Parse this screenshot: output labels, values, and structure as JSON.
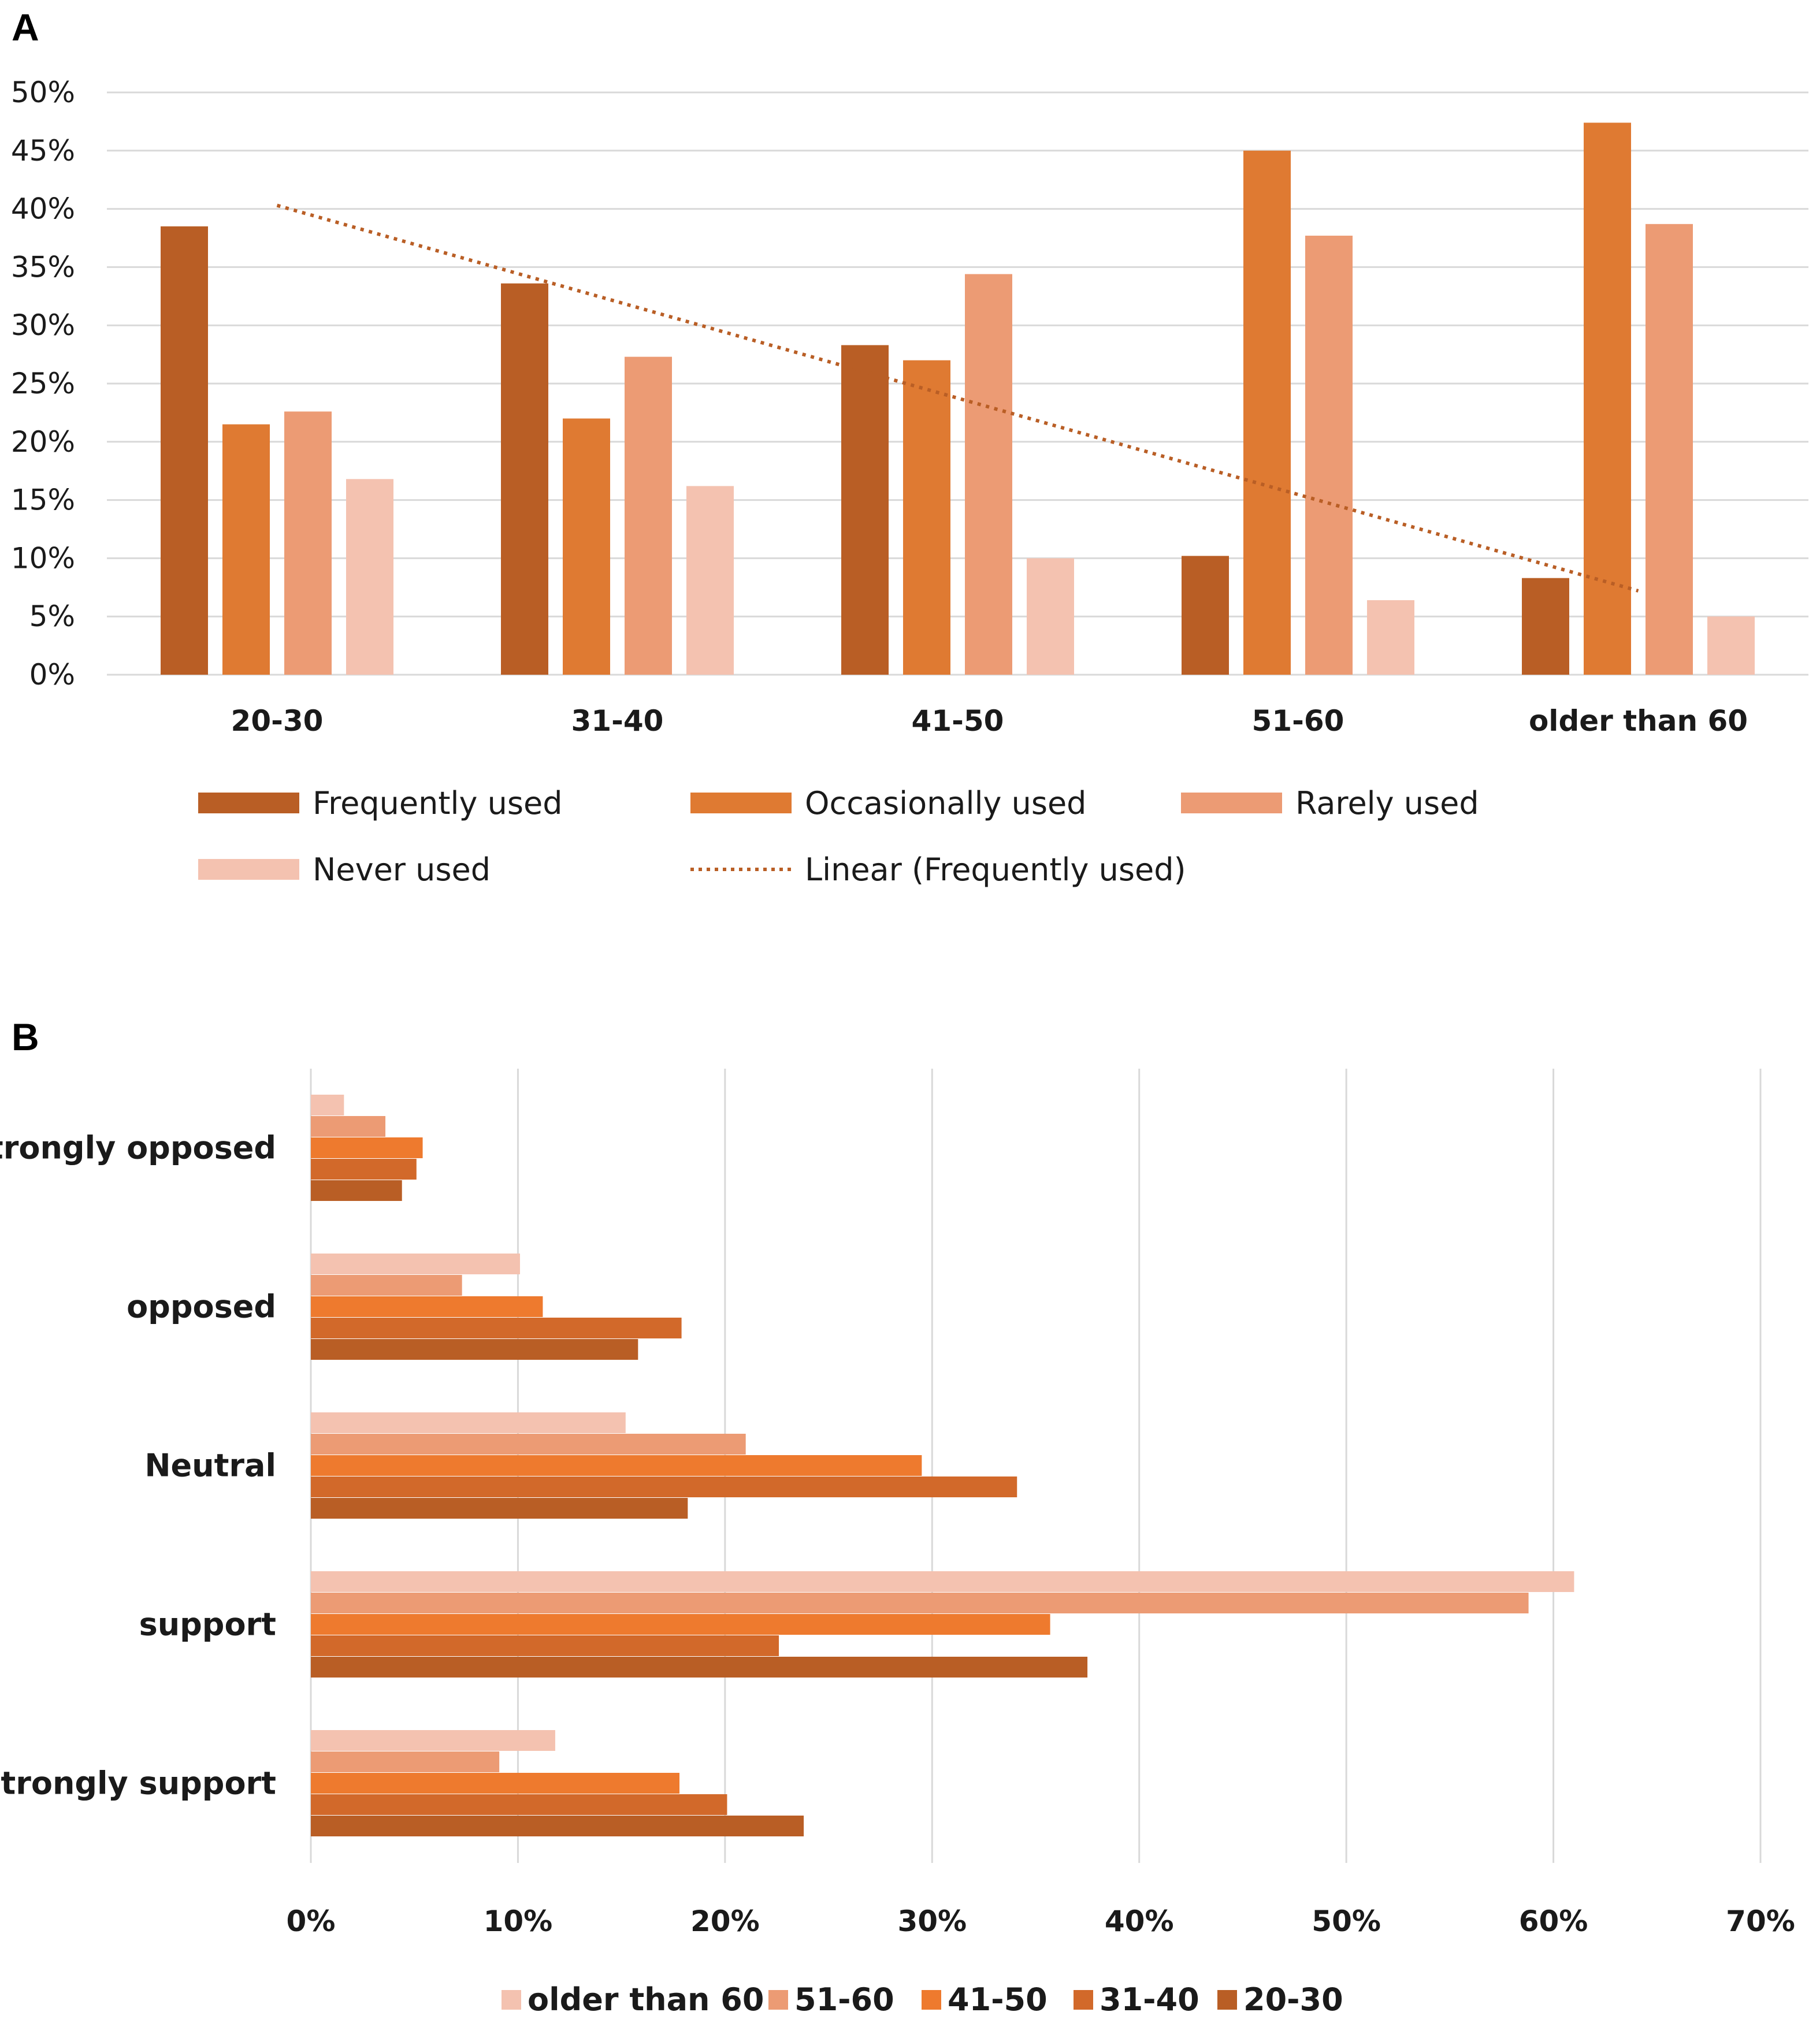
{
  "panel_labels": [
    "A",
    "B"
  ],
  "colors": {
    "frequently": "#B95E25",
    "occasionally": "#DF7A32",
    "rarely": "#EC9B74",
    "never": "#F4C2B0",
    "trend": "#B95E25",
    "grid": "#D9D9D9",
    "text": "#1A1A1A"
  },
  "chart_data": [
    {
      "type": "bar",
      "panel": "A",
      "orientation": "vertical",
      "categories": [
        "20-30",
        "31-40",
        "41-50",
        "51-60",
        "older than 60"
      ],
      "series": [
        {
          "name": "Frequently used",
          "color_key": "frequently",
          "values": [
            38.5,
            33.6,
            28.3,
            10.2,
            8.3
          ]
        },
        {
          "name": "Occasionally used",
          "color_key": "occasionally",
          "values": [
            21.5,
            22.0,
            27.0,
            45.0,
            47.4
          ]
        },
        {
          "name": "Rarely used",
          "color_key": "rarely",
          "values": [
            22.6,
            27.3,
            34.4,
            37.7,
            38.7
          ]
        },
        {
          "name": "Never used",
          "color_key": "never",
          "values": [
            16.8,
            16.2,
            10.0,
            6.4,
            5.0
          ]
        }
      ],
      "trendline": {
        "name": "Linear (Frequently used)",
        "of_series": "Frequently used",
        "start": 40.3,
        "end": 7.2
      },
      "ylim": [
        0,
        50
      ],
      "yticks": [
        0,
        5,
        10,
        15,
        20,
        25,
        30,
        35,
        40,
        45,
        50
      ],
      "tick_suffix": "%",
      "grid": true,
      "legend_position": "bottom",
      "legend_order": [
        "Frequently used",
        "Occasionally used",
        "Rarely used",
        "Never used",
        "Linear (Frequently used)"
      ],
      "title": "",
      "xlabel": "",
      "ylabel": ""
    },
    {
      "type": "bar",
      "panel": "B",
      "orientation": "horizontal",
      "categories": [
        "Strongly opposed",
        "opposed",
        "Neutral",
        "support",
        "Strongly support"
      ],
      "series": [
        {
          "name": "older than 60",
          "color_key": "never",
          "values": [
            1.6,
            10.1,
            15.2,
            61.0,
            11.8
          ]
        },
        {
          "name": "51-60",
          "color_key": "rarely",
          "values": [
            3.6,
            7.3,
            21.0,
            58.8,
            9.1
          ]
        },
        {
          "name": "41-50",
          "color_key": "occasionally",
          "values": [
            5.4,
            11.2,
            29.5,
            35.7,
            17.8
          ]
        },
        {
          "name": "31-40",
          "color_key": "occasionally_dark",
          "values": [
            5.1,
            17.9,
            34.1,
            22.6,
            20.1
          ]
        },
        {
          "name": "20-30",
          "color_key": "frequently",
          "values": [
            4.4,
            15.8,
            18.2,
            37.5,
            23.8
          ]
        }
      ],
      "series_colors": {
        "older than 60": "#F4C2B0",
        "51-60": "#EC9B74",
        "41-50": "#EE7A2E",
        "31-40": "#D2692A",
        "20-30": "#B95E25"
      },
      "xlim": [
        0,
        70
      ],
      "xticks": [
        0,
        10,
        20,
        30,
        40,
        50,
        60,
        70
      ],
      "tick_suffix": "%",
      "grid": true,
      "legend_position": "bottom",
      "title": "",
      "xlabel": "",
      "ylabel": ""
    }
  ]
}
